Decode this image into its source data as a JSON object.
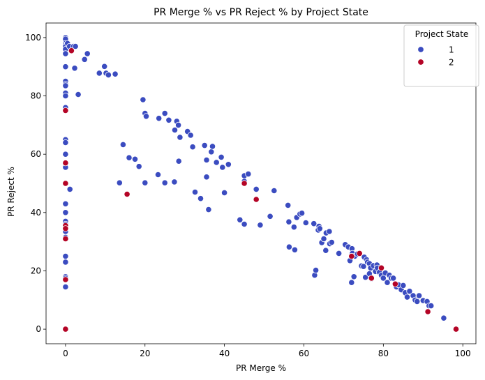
{
  "chart_data": {
    "type": "scatter",
    "title": "PR Merge % vs PR Reject % by Project State",
    "xlabel": "PR Merge %",
    "ylabel": "PR Reject %",
    "xlim": [
      -4.9,
      103.3
    ],
    "ylim": [
      -5,
      105
    ],
    "xticks": [
      0,
      20,
      40,
      60,
      80,
      100
    ],
    "yticks": [
      0,
      20,
      40,
      60,
      80,
      100
    ],
    "grid": false,
    "legend": {
      "title": "Project State",
      "position": "top-right"
    },
    "series": [
      {
        "name": "1",
        "color": "#3b4cc0",
        "points": [
          [
            0,
            100
          ],
          [
            0,
            99.5
          ],
          [
            0,
            98
          ],
          [
            0,
            97.5
          ],
          [
            0,
            97
          ],
          [
            0,
            96
          ],
          [
            0,
            94.5
          ],
          [
            0,
            90
          ],
          [
            0,
            85
          ],
          [
            0,
            84
          ],
          [
            0,
            83.5
          ],
          [
            0,
            81
          ],
          [
            0,
            80
          ],
          [
            0,
            76
          ],
          [
            0,
            65
          ],
          [
            0,
            64
          ],
          [
            0,
            60
          ],
          [
            0,
            57
          ],
          [
            0,
            55.5
          ],
          [
            0,
            50
          ],
          [
            0,
            43
          ],
          [
            0,
            40
          ],
          [
            0,
            37
          ],
          [
            0,
            36
          ],
          [
            0,
            33.5
          ],
          [
            0,
            31.5
          ],
          [
            0,
            25
          ],
          [
            0,
            23
          ],
          [
            0,
            18
          ],
          [
            0,
            17.5
          ],
          [
            0,
            14.5
          ],
          [
            0.5,
            98
          ],
          [
            1,
            97
          ],
          [
            1.5,
            95.5
          ],
          [
            2,
            97
          ],
          [
            2.5,
            97
          ],
          [
            2.3,
            89.5
          ],
          [
            3.2,
            80.5
          ],
          [
            1.1,
            48
          ],
          [
            4.8,
            92.5
          ],
          [
            5.5,
            94.5
          ],
          [
            8.5,
            87.8
          ],
          [
            9.8,
            90.1
          ],
          [
            10.2,
            87.8
          ],
          [
            10.8,
            87.2
          ],
          [
            12.5,
            87.5
          ],
          [
            19.5,
            78.7
          ],
          [
            20,
            74
          ],
          [
            20.3,
            73
          ],
          [
            23.5,
            72.3
          ],
          [
            25,
            74
          ],
          [
            26,
            71.7
          ],
          [
            27.5,
            68.3
          ],
          [
            28,
            71.3
          ],
          [
            28.4,
            70
          ],
          [
            28.8,
            65.8
          ],
          [
            30.7,
            67.8
          ],
          [
            31.5,
            66.5
          ],
          [
            32,
            62.5
          ],
          [
            35,
            63
          ],
          [
            35.5,
            58
          ],
          [
            36.7,
            60.8
          ],
          [
            37,
            62.7
          ],
          [
            38,
            57.2
          ],
          [
            39.2,
            59
          ],
          [
            39.5,
            55.5
          ],
          [
            41,
            56.5
          ],
          [
            14.5,
            63.3
          ],
          [
            16,
            58.8
          ],
          [
            17.5,
            58.3
          ],
          [
            18.5,
            55.8
          ],
          [
            13.6,
            50.2
          ],
          [
            20,
            50.2
          ],
          [
            23.3,
            53
          ],
          [
            25,
            50.2
          ],
          [
            27.4,
            50.5
          ],
          [
            28.5,
            57.6
          ],
          [
            32.6,
            47
          ],
          [
            34,
            44.8
          ],
          [
            35.5,
            52.2
          ],
          [
            36,
            41
          ],
          [
            40,
            46.8
          ],
          [
            43.9,
            37.5
          ],
          [
            45,
            52.6
          ],
          [
            45,
            50.7
          ],
          [
            45,
            36
          ],
          [
            46,
            53.2
          ],
          [
            48,
            48
          ],
          [
            49,
            35.7
          ],
          [
            51.5,
            38.7
          ],
          [
            52.5,
            47.5
          ],
          [
            56,
            42.5
          ],
          [
            56.2,
            36.8
          ],
          [
            56.3,
            28.2
          ],
          [
            57.5,
            35
          ],
          [
            57.7,
            27.2
          ],
          [
            58.2,
            38.3
          ],
          [
            59,
            39.5
          ],
          [
            59.5,
            39.8
          ],
          [
            60.5,
            36.5
          ],
          [
            62.5,
            36.2
          ],
          [
            62.7,
            18.5
          ],
          [
            63,
            20.2
          ],
          [
            63.6,
            34
          ],
          [
            63.8,
            35.3
          ],
          [
            64,
            34.5
          ],
          [
            64.5,
            29.7
          ],
          [
            65,
            31
          ],
          [
            65.5,
            27
          ],
          [
            65.6,
            33
          ],
          [
            66.4,
            33.5
          ],
          [
            66.5,
            29.3
          ],
          [
            67,
            29.8
          ],
          [
            68.8,
            26
          ],
          [
            70.4,
            29
          ],
          [
            71.2,
            28.2
          ],
          [
            71.6,
            23.5
          ],
          [
            72,
            16
          ],
          [
            72.1,
            27.6
          ],
          [
            72.2,
            26
          ],
          [
            72.6,
            18
          ],
          [
            72.8,
            25
          ],
          [
            73.5,
            25.8
          ],
          [
            74.5,
            21.7
          ],
          [
            75,
            21.5
          ],
          [
            75.2,
            24.7
          ],
          [
            75.5,
            17.8
          ],
          [
            75.8,
            23.8
          ],
          [
            76,
            23
          ],
          [
            76.5,
            22.5
          ],
          [
            76.5,
            19
          ],
          [
            76.8,
            21
          ],
          [
            77,
            17.3
          ],
          [
            77.5,
            21.8
          ],
          [
            78,
            19.8
          ],
          [
            78.4,
            22
          ],
          [
            78.5,
            21
          ],
          [
            79,
            19.5
          ],
          [
            79.5,
            18.5
          ],
          [
            80,
            17.5
          ],
          [
            80.5,
            19.3
          ],
          [
            81,
            16
          ],
          [
            81.5,
            18.5
          ],
          [
            82,
            17.5
          ],
          [
            82.5,
            17.5
          ],
          [
            83,
            15.5
          ],
          [
            83.3,
            14.5
          ],
          [
            83.8,
            15.2
          ],
          [
            84.5,
            13.5
          ],
          [
            85,
            15
          ],
          [
            85.5,
            12.5
          ],
          [
            86,
            11
          ],
          [
            86.6,
            13
          ],
          [
            87.5,
            11.5
          ],
          [
            88,
            10
          ],
          [
            88.5,
            9.5
          ],
          [
            89,
            11.5
          ],
          [
            90,
            9.8
          ],
          [
            91,
            9.5
          ],
          [
            91.5,
            8
          ],
          [
            92,
            8
          ],
          [
            95.2,
            3.8
          ]
        ]
      },
      {
        "name": "2",
        "color": "#b40426",
        "points": [
          [
            0,
            75
          ],
          [
            0,
            57
          ],
          [
            0,
            50
          ],
          [
            0,
            35.5
          ],
          [
            0,
            34.5
          ],
          [
            0,
            31
          ],
          [
            0,
            17
          ],
          [
            0,
            0
          ],
          [
            1.5,
            95.5
          ],
          [
            15.5,
            46.3
          ],
          [
            45,
            50
          ],
          [
            48,
            44.5
          ],
          [
            72,
            25
          ],
          [
            74,
            26
          ],
          [
            77,
            17.5
          ],
          [
            79.5,
            21
          ],
          [
            83,
            15.5
          ],
          [
            91.2,
            6
          ],
          [
            98.3,
            0
          ]
        ]
      }
    ]
  }
}
